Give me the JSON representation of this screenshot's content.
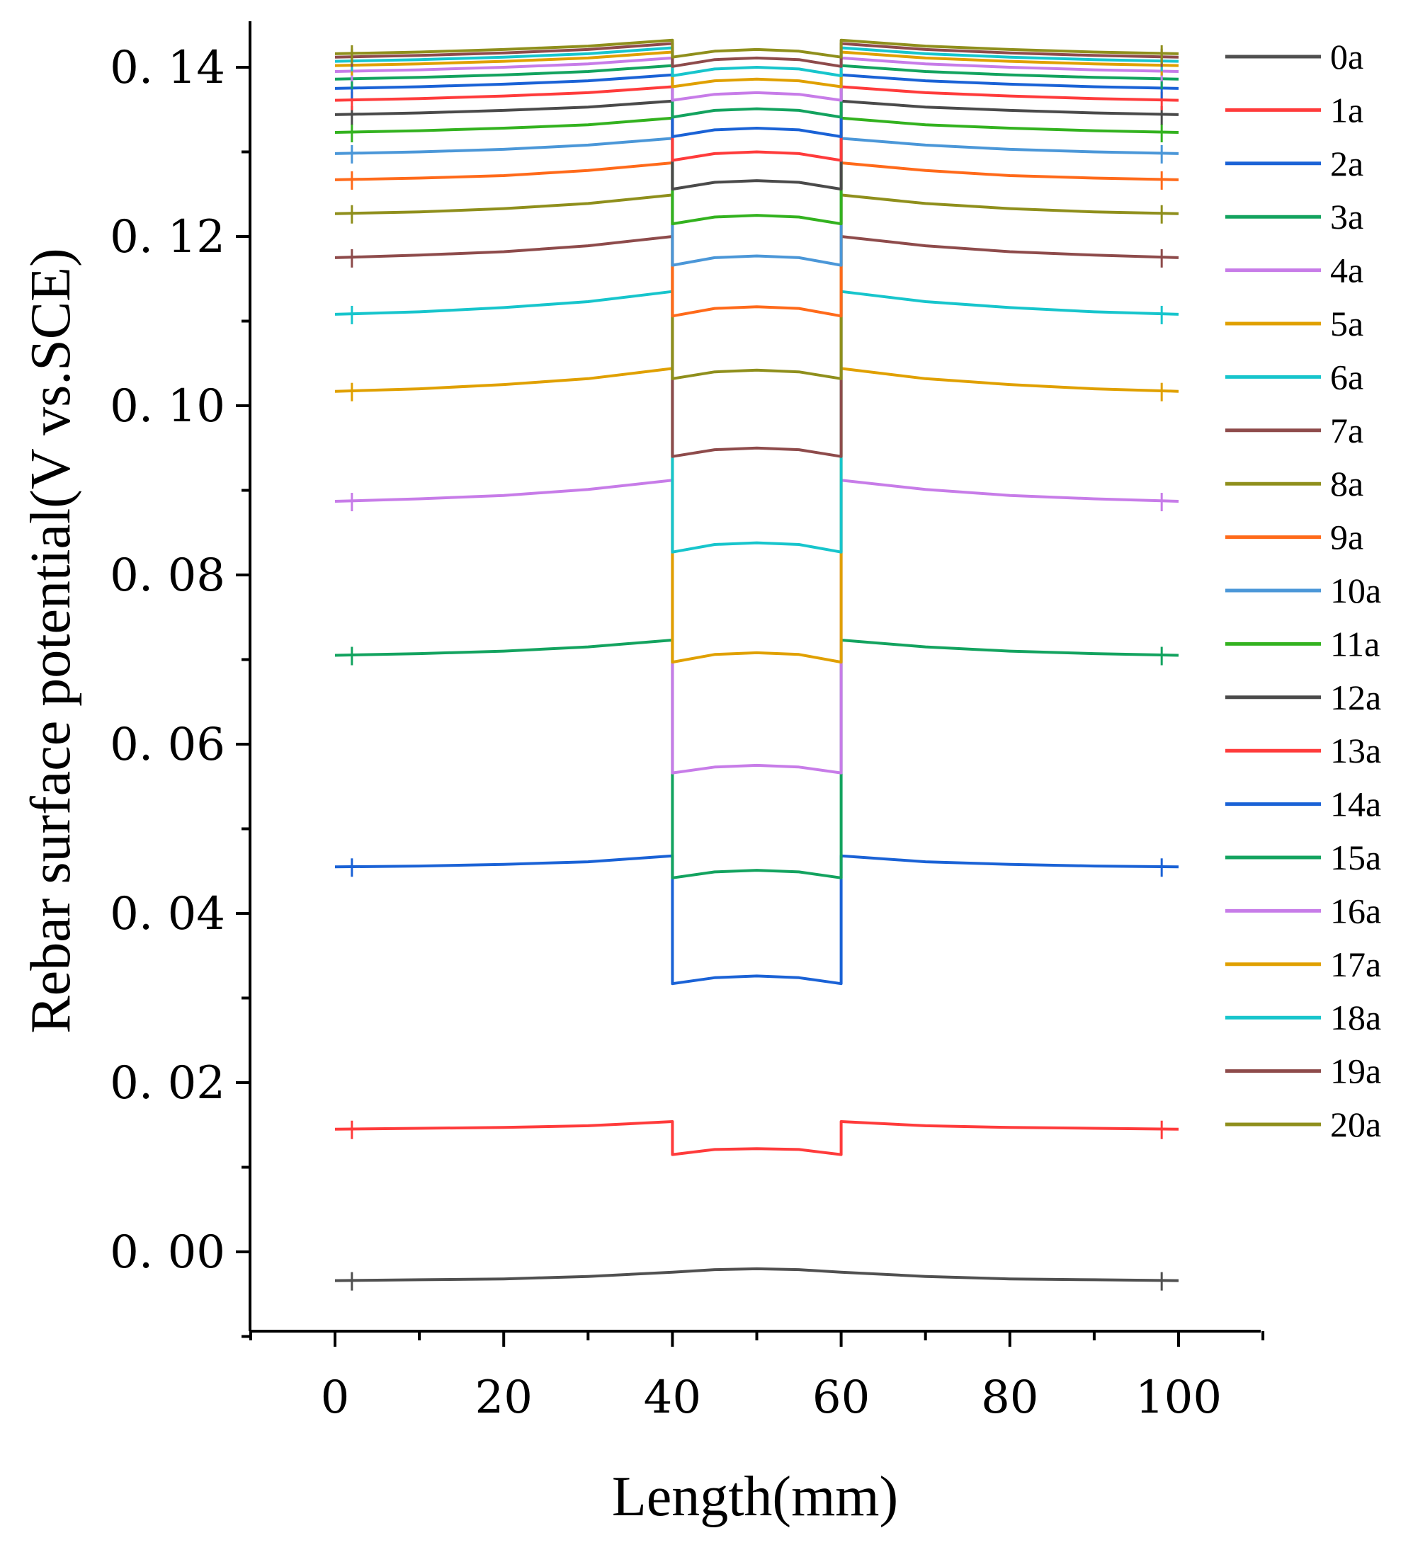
{
  "chart_data": {
    "type": "line",
    "title": "",
    "xlabel": "Length(mm)",
    "ylabel": "Rebar surface potential(V vs.SCE)",
    "xlim": [
      -10,
      110
    ],
    "ylim": [
      -0.01,
      0.145
    ],
    "grid": false,
    "legend_position": "right",
    "x_ticks": [
      0,
      20,
      40,
      60,
      80,
      100
    ],
    "x_tick_labels": [
      "0",
      "20",
      "40",
      "60",
      "80",
      "100"
    ],
    "y_ticks": [
      0.0,
      0.02,
      0.04,
      0.06,
      0.08,
      0.1,
      0.12,
      0.14
    ],
    "y_tick_labels": [
      "0. 00",
      "0. 02",
      "0. 04",
      "0. 06",
      "0. 08",
      "0. 10",
      "0. 12",
      "0. 14"
    ],
    "x": [
      0,
      10,
      20,
      30,
      40,
      40,
      45,
      50,
      55,
      60,
      60,
      70,
      80,
      90,
      100
    ],
    "series": [
      {
        "name": "0a",
        "color": "#505050",
        "values": [
          -0.0034,
          -0.0033,
          -0.0032,
          -0.0029,
          -0.0024,
          -0.0024,
          -0.0021,
          -0.002,
          -0.0021,
          -0.0024,
          -0.0024,
          -0.0029,
          -0.0032,
          -0.0033,
          -0.0034
        ]
      },
      {
        "name": "1a",
        "color": "#ff3b3b",
        "values": [
          0.0145,
          0.0146,
          0.0147,
          0.0149,
          0.0154,
          0.0115,
          0.0121,
          0.0122,
          0.0121,
          0.0115,
          0.0154,
          0.0149,
          0.0147,
          0.0146,
          0.0145
        ]
      },
      {
        "name": "2a",
        "color": "#1a62d6",
        "values": [
          0.0455,
          0.0456,
          0.0458,
          0.0461,
          0.0468,
          0.0317,
          0.0324,
          0.0326,
          0.0324,
          0.0317,
          0.0468,
          0.0461,
          0.0458,
          0.0456,
          0.0455
        ]
      },
      {
        "name": "3a",
        "color": "#13a35f",
        "values": [
          0.0705,
          0.0707,
          0.071,
          0.0715,
          0.0723,
          0.0442,
          0.0449,
          0.0451,
          0.0449,
          0.0442,
          0.0723,
          0.0715,
          0.071,
          0.0707,
          0.0705
        ]
      },
      {
        "name": "4a",
        "color": "#c77ce8",
        "values": [
          0.0887,
          0.089,
          0.0894,
          0.0901,
          0.0912,
          0.0566,
          0.0573,
          0.0575,
          0.0573,
          0.0566,
          0.0912,
          0.0901,
          0.0894,
          0.089,
          0.0887
        ]
      },
      {
        "name": "5a",
        "color": "#e0a000",
        "values": [
          0.1017,
          0.102,
          0.1025,
          0.1032,
          0.1044,
          0.0697,
          0.0706,
          0.0708,
          0.0706,
          0.0697,
          0.1044,
          0.1032,
          0.1025,
          0.102,
          0.1017
        ]
      },
      {
        "name": "6a",
        "color": "#17c5cc",
        "values": [
          0.1108,
          0.1111,
          0.1116,
          0.1123,
          0.1135,
          0.0827,
          0.0836,
          0.0838,
          0.0836,
          0.0827,
          0.1135,
          0.1123,
          0.1116,
          0.1111,
          0.1108
        ]
      },
      {
        "name": "7a",
        "color": "#8e4b4b",
        "values": [
          0.1175,
          0.1178,
          0.1182,
          0.1189,
          0.12,
          0.094,
          0.0948,
          0.095,
          0.0948,
          0.094,
          0.12,
          0.1189,
          0.1182,
          0.1178,
          0.1175
        ]
      },
      {
        "name": "8a",
        "color": "#8f8f1c",
        "values": [
          0.1227,
          0.1229,
          0.1233,
          0.1239,
          0.1249,
          0.1032,
          0.104,
          0.1042,
          0.104,
          0.1032,
          0.1249,
          0.1239,
          0.1233,
          0.1229,
          0.1227
        ]
      },
      {
        "name": "9a",
        "color": "#ff6a1a",
        "values": [
          0.1267,
          0.1269,
          0.1272,
          0.1278,
          0.1287,
          0.1106,
          0.1115,
          0.1117,
          0.1115,
          0.1106,
          0.1287,
          0.1278,
          0.1272,
          0.1269,
          0.1267
        ]
      },
      {
        "name": "10a",
        "color": "#4b97d8",
        "values": [
          0.1298,
          0.13,
          0.1303,
          0.1308,
          0.1316,
          0.1166,
          0.1175,
          0.1177,
          0.1175,
          0.1166,
          0.1316,
          0.1308,
          0.1303,
          0.13,
          0.1298
        ]
      },
      {
        "name": "11a",
        "color": "#33b21f",
        "values": [
          0.1323,
          0.1325,
          0.1328,
          0.1332,
          0.134,
          0.1215,
          0.1223,
          0.1225,
          0.1223,
          0.1215,
          0.134,
          0.1332,
          0.1328,
          0.1325,
          0.1323
        ]
      },
      {
        "name": "12a",
        "color": "#4a4a4a",
        "values": [
          0.1344,
          0.1346,
          0.1349,
          0.1353,
          0.136,
          0.1256,
          0.1264,
          0.1266,
          0.1264,
          0.1256,
          0.136,
          0.1353,
          0.1349,
          0.1346,
          0.1344
        ]
      },
      {
        "name": "13a",
        "color": "#ff3b3b",
        "values": [
          0.1361,
          0.1363,
          0.1366,
          0.137,
          0.1377,
          0.129,
          0.1298,
          0.13,
          0.1298,
          0.129,
          0.1377,
          0.137,
          0.1366,
          0.1363,
          0.1361
        ]
      },
      {
        "name": "14a",
        "color": "#1a62d6",
        "values": [
          0.1375,
          0.1377,
          0.138,
          0.1384,
          0.1391,
          0.1318,
          0.1326,
          0.1328,
          0.1326,
          0.1318,
          0.1391,
          0.1384,
          0.138,
          0.1377,
          0.1375
        ]
      },
      {
        "name": "15a",
        "color": "#13a35f",
        "values": [
          0.1386,
          0.1388,
          0.1391,
          0.1395,
          0.1402,
          0.1341,
          0.1349,
          0.1351,
          0.1349,
          0.1341,
          0.1402,
          0.1395,
          0.1391,
          0.1388,
          0.1386
        ]
      },
      {
        "name": "16a",
        "color": "#c77ce8",
        "values": [
          0.1395,
          0.1397,
          0.14,
          0.1404,
          0.1411,
          0.1361,
          0.1368,
          0.137,
          0.1368,
          0.1361,
          0.1411,
          0.1404,
          0.14,
          0.1397,
          0.1395
        ]
      },
      {
        "name": "17a",
        "color": "#e0a000",
        "values": [
          0.1402,
          0.1404,
          0.1407,
          0.1411,
          0.1418,
          0.1377,
          0.1384,
          0.1386,
          0.1384,
          0.1377,
          0.1418,
          0.1411,
          0.1407,
          0.1404,
          0.1402
        ]
      },
      {
        "name": "18a",
        "color": "#17c5cc",
        "values": [
          0.1407,
          0.1409,
          0.1412,
          0.1416,
          0.1423,
          0.139,
          0.1398,
          0.14,
          0.1398,
          0.139,
          0.1423,
          0.1416,
          0.1412,
          0.1409,
          0.1407
        ]
      },
      {
        "name": "19a",
        "color": "#8e4b4b",
        "values": [
          0.1412,
          0.1414,
          0.1417,
          0.1421,
          0.1428,
          0.1401,
          0.1409,
          0.1411,
          0.1409,
          0.1401,
          0.1428,
          0.1421,
          0.1417,
          0.1414,
          0.1412
        ]
      },
      {
        "name": "20a",
        "color": "#8f8f1c",
        "values": [
          0.1416,
          0.1418,
          0.1421,
          0.1425,
          0.1432,
          0.1412,
          0.1419,
          0.1421,
          0.1419,
          0.1412,
          0.1432,
          0.1425,
          0.1421,
          0.1418,
          0.1416
        ]
      }
    ]
  }
}
